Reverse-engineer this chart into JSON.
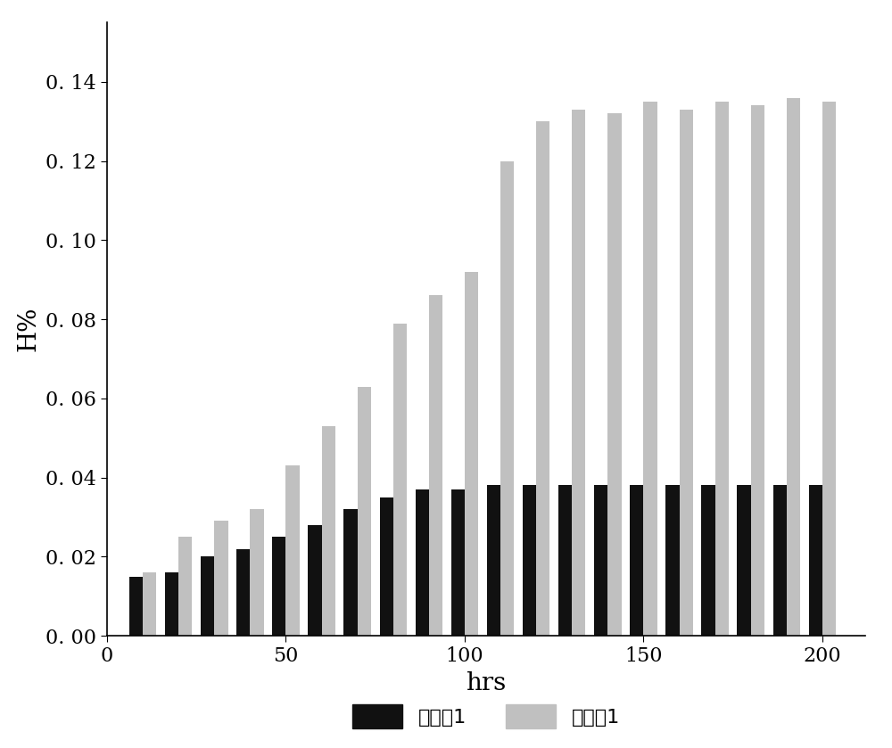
{
  "x_positions": [
    10,
    20,
    30,
    40,
    50,
    60,
    70,
    80,
    90,
    100,
    110,
    120,
    130,
    140,
    150,
    160,
    170,
    180,
    190,
    200
  ],
  "series1_values": [
    0.015,
    0.016,
    0.02,
    0.022,
    0.025,
    0.028,
    0.032,
    0.035,
    0.037,
    0.037,
    0.038,
    0.038,
    0.038,
    0.038,
    0.038,
    0.038,
    0.038,
    0.038,
    0.038,
    0.038
  ],
  "series2_values": [
    0.016,
    0.025,
    0.029,
    0.032,
    0.043,
    0.053,
    0.063,
    0.079,
    0.086,
    0.092,
    0.12,
    0.13,
    0.133,
    0.132,
    0.135,
    0.133,
    0.135,
    0.134,
    0.136,
    0.135
  ],
  "series1_color": "#111111",
  "series2_color": "#c0c0c0",
  "series1_label": "实施例1",
  "series2_label": "对比例1",
  "xlabel": "hrs",
  "ylabel": "H%",
  "xlim": [
    0,
    212
  ],
  "ylim": [
    0.0,
    0.155
  ],
  "yticks": [
    0.0,
    0.02,
    0.04,
    0.06,
    0.08,
    0.1,
    0.12,
    0.14
  ],
  "xticks": [
    0,
    50,
    100,
    150,
    200
  ],
  "bar_width": 3.8,
  "figsize": [
    10.0,
    8.39
  ],
  "dpi": 100,
  "fontsize_label": 20,
  "fontsize_tick": 16,
  "fontsize_legend": 16,
  "background_color": "#ffffff"
}
